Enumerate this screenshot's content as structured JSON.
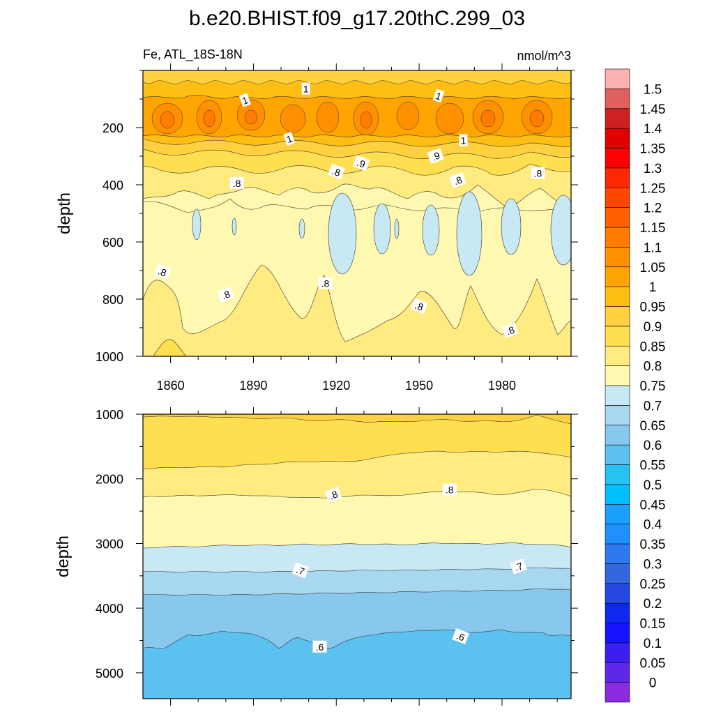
{
  "chart_data": {
    "type": "heatmap",
    "title": "b.e20.BHIST.f09_g17.20thC.299_03",
    "subtitle_left": "Fe, ATL_18S-18N",
    "subtitle_right": "nmol/m^3",
    "colorbar": {
      "levels": [
        "0",
        "0.05",
        "0.1",
        "0.15",
        "0.2",
        "0.25",
        "0.3",
        "0.35",
        "0.4",
        "0.45",
        "0.5",
        "0.55",
        "0.6",
        "0.65",
        "0.7",
        "0.75",
        "0.8",
        "0.85",
        "0.9",
        "0.95",
        "1",
        "1.05",
        "1.1",
        "1.15",
        "1.2",
        "1.25",
        "1.3",
        "1.35",
        "1.4",
        "1.45",
        "1.5"
      ],
      "colors": [
        "#8a2be2",
        "#5f28e8",
        "#3b1ff0",
        "#1414ff",
        "#0f28f0",
        "#2448e0",
        "#3466e0",
        "#2e78f0",
        "#1e90ff",
        "#1aa0ff",
        "#00bfff",
        "#27c1f2",
        "#5bc2f0",
        "#88c8ec",
        "#a8d8f0",
        "#c8e8f4",
        "#fff8b0",
        "#ffeb80",
        "#ffdf50",
        "#ffd040",
        "#ffbe14",
        "#ffa500",
        "#ff9000",
        "#ff7c00",
        "#ff6000",
        "#ff4700",
        "#ff2800",
        "#ff0000",
        "#e00000",
        "#cc2222",
        "#e06060",
        "#ffb0b0"
      ]
    },
    "panels": [
      {
        "name": "upper",
        "xlabel": "",
        "ylabel": "depth",
        "x_range": [
          1850,
          2005
        ],
        "y_range": [
          0,
          1000
        ],
        "x_ticks": [
          "1860",
          "1890",
          "1920",
          "1950",
          "1980"
        ],
        "y_ticks": [
          "200",
          "400",
          "600",
          "800",
          "1000"
        ],
        "contour_labels": [
          {
            "text": "1",
            "x": 1887,
            "y": 105
          },
          {
            "text": "1",
            "x": 1909,
            "y": 65
          },
          {
            "text": "1",
            "x": 1957,
            "y": 90
          },
          {
            "text": "1",
            "x": 1903,
            "y": 240
          },
          {
            "text": "1",
            "x": 1966,
            "y": 245
          },
          {
            "text": ".9",
            "x": 1929,
            "y": 325
          },
          {
            "text": ".9",
            "x": 1956,
            "y": 300
          },
          {
            "text": ".8",
            "x": 1884,
            "y": 395
          },
          {
            "text": ".8",
            "x": 1920,
            "y": 355
          },
          {
            "text": ".8",
            "x": 1964,
            "y": 385
          },
          {
            "text": ".8",
            "x": 1993,
            "y": 360
          },
          {
            "text": ".8",
            "x": 1857,
            "y": 705
          },
          {
            "text": ".8",
            "x": 1880,
            "y": 785
          },
          {
            "text": ".8",
            "x": 1916,
            "y": 745
          },
          {
            "text": ".8",
            "x": 1950,
            "y": 825
          },
          {
            "text": ".8",
            "x": 1983,
            "y": 910
          }
        ]
      },
      {
        "name": "lower",
        "xlabel": "",
        "ylabel": "depth",
        "x_range": [
          1850,
          2005
        ],
        "y_range": [
          1000,
          5400
        ],
        "x_ticks": [],
        "y_ticks": [
          "1000",
          "2000",
          "3000",
          "4000",
          "5000"
        ],
        "contour_labels": [
          {
            "text": ".8",
            "x": 1919,
            "y": 2250
          },
          {
            "text": ".8",
            "x": 1961,
            "y": 2170
          },
          {
            "text": ".7",
            "x": 1907,
            "y": 3420
          },
          {
            "text": ".7",
            "x": 1986,
            "y": 3360
          },
          {
            "text": ".6",
            "x": 1914,
            "y": 4600
          },
          {
            "text": ".6",
            "x": 1965,
            "y": 4440
          }
        ]
      }
    ]
  }
}
